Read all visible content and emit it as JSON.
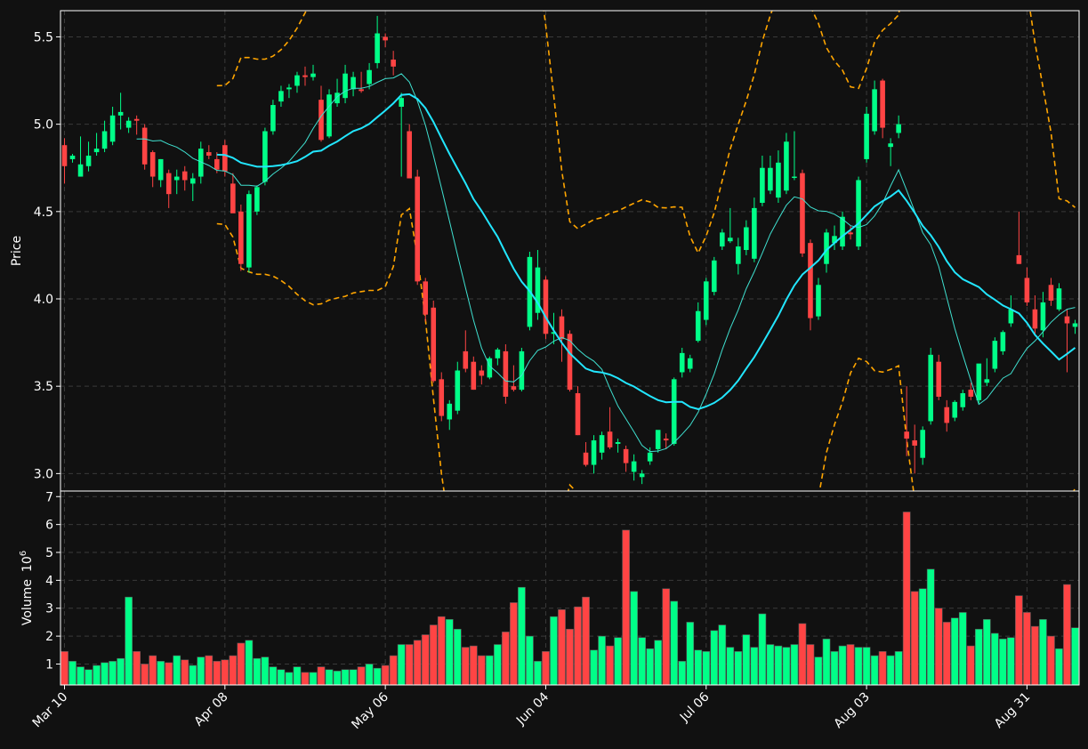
{
  "chart_data": {
    "type": "candlestick",
    "panels": [
      "price",
      "volume"
    ],
    "x_tick_labels": [
      "Mar 10",
      "Apr 08",
      "May 06",
      "Jun 04",
      "Jul 06",
      "Aug 03",
      "Aug 31"
    ],
    "x_tick_days": [
      0,
      20,
      40,
      60,
      80,
      100,
      120
    ],
    "x_range": [
      -0.5,
      126.5
    ],
    "price_axis": {
      "label": "Price",
      "ylim": [
        2.9,
        5.65
      ],
      "ticks": [
        3.0,
        3.5,
        4.0,
        4.5,
        5.0,
        5.5
      ]
    },
    "volume_axis": {
      "label": "Volume",
      "exponent_label": "10",
      "exponent": "6",
      "ylim": [
        0.25,
        7.2
      ],
      "ticks": [
        1,
        2,
        3,
        4,
        5,
        6,
        7
      ]
    },
    "grid": true,
    "colors": {
      "background": "#111111",
      "up": "#00ff88",
      "down": "#ff4444",
      "grid": "#3a3a3a",
      "ma_fast": "#3fe0d0",
      "ma_slow": "#22e6ff",
      "bands": "#ffa500",
      "text": "#ffffff"
    },
    "series": [
      {
        "name": "",
        "kind": "candles",
        "rows": [
          [
            4.88,
            4.92,
            4.66,
            4.76,
            1.45
          ],
          [
            4.8,
            4.83,
            4.78,
            4.82,
            1.1
          ],
          [
            4.7,
            4.93,
            4.7,
            4.77,
            0.9
          ],
          [
            4.76,
            4.9,
            4.73,
            4.82,
            0.8
          ],
          [
            4.84,
            4.95,
            4.82,
            4.86,
            0.95
          ],
          [
            4.86,
            5.02,
            4.84,
            4.96,
            1.05
          ],
          [
            4.9,
            5.1,
            4.88,
            5.05,
            1.1
          ],
          [
            5.05,
            5.18,
            4.97,
            5.07,
            1.2
          ],
          [
            4.98,
            5.04,
            4.95,
            5.02,
            3.4
          ],
          [
            5.03,
            5.05,
            4.94,
            5.02,
            1.45
          ],
          [
            4.98,
            5.0,
            4.74,
            4.77,
            1.0
          ],
          [
            4.84,
            4.85,
            4.64,
            4.7,
            1.3
          ],
          [
            4.68,
            4.8,
            4.64,
            4.8,
            1.1
          ],
          [
            4.72,
            4.74,
            4.52,
            4.6,
            1.05
          ],
          [
            4.68,
            4.74,
            4.6,
            4.7,
            1.3
          ],
          [
            4.73,
            4.76,
            4.62,
            4.68,
            1.15
          ],
          [
            4.66,
            4.72,
            4.56,
            4.69,
            0.95
          ],
          [
            4.7,
            4.9,
            4.66,
            4.86,
            1.25
          ],
          [
            4.84,
            4.88,
            4.8,
            4.82,
            1.3
          ],
          [
            4.8,
            4.84,
            4.72,
            4.74,
            1.1
          ],
          [
            4.88,
            4.91,
            4.7,
            4.73,
            1.15
          ],
          [
            4.66,
            4.72,
            4.5,
            4.49,
            1.3
          ],
          [
            4.5,
            4.54,
            4.16,
            4.2,
            1.75
          ],
          [
            4.18,
            4.62,
            4.15,
            4.6,
            1.85
          ],
          [
            4.5,
            4.65,
            4.48,
            4.64,
            1.2
          ],
          [
            4.67,
            4.98,
            4.65,
            4.96,
            1.25
          ],
          [
            4.96,
            5.14,
            4.94,
            5.11,
            0.9
          ],
          [
            5.13,
            5.22,
            5.1,
            5.19,
            0.8
          ],
          [
            5.2,
            5.23,
            5.15,
            5.21,
            0.7
          ],
          [
            5.22,
            5.3,
            5.18,
            5.28,
            0.9
          ],
          [
            5.28,
            5.33,
            5.22,
            5.27,
            0.7
          ],
          [
            5.27,
            5.34,
            5.25,
            5.29,
            0.7
          ],
          [
            5.14,
            5.22,
            4.9,
            4.91,
            0.9
          ],
          [
            4.93,
            5.2,
            4.92,
            5.17,
            0.8
          ],
          [
            5.12,
            5.26,
            5.1,
            5.18,
            0.75
          ],
          [
            5.15,
            5.34,
            5.12,
            5.29,
            0.8
          ],
          [
            5.2,
            5.3,
            5.16,
            5.27,
            0.8
          ],
          [
            5.2,
            5.3,
            5.18,
            5.19,
            0.9
          ],
          [
            5.23,
            5.35,
            5.2,
            5.31,
            1.0
          ],
          [
            5.35,
            5.62,
            5.32,
            5.52,
            0.85
          ],
          [
            5.5,
            5.52,
            5.44,
            5.48,
            0.95
          ],
          [
            5.37,
            5.42,
            5.28,
            5.33,
            1.3
          ],
          [
            5.1,
            5.18,
            4.7,
            5.15,
            1.7
          ],
          [
            4.96,
            5.0,
            4.74,
            4.69,
            1.7
          ],
          [
            4.7,
            4.74,
            4.08,
            4.1,
            1.85
          ],
          [
            4.1,
            4.12,
            3.87,
            3.91,
            2.05
          ],
          [
            3.95,
            3.99,
            3.52,
            3.53,
            2.4
          ],
          [
            3.54,
            3.58,
            3.3,
            3.33,
            2.7
          ],
          [
            3.31,
            3.42,
            3.25,
            3.4,
            2.6
          ],
          [
            3.36,
            3.64,
            3.34,
            3.59,
            2.25
          ],
          [
            3.7,
            3.82,
            3.58,
            3.6,
            1.6
          ],
          [
            3.64,
            3.67,
            3.48,
            3.48,
            1.65
          ],
          [
            3.59,
            3.62,
            3.51,
            3.56,
            1.3
          ],
          [
            3.55,
            3.67,
            3.54,
            3.66,
            1.3
          ],
          [
            3.66,
            3.72,
            3.62,
            3.71,
            1.7
          ],
          [
            3.7,
            3.74,
            3.4,
            3.44,
            2.15
          ],
          [
            3.5,
            3.62,
            3.47,
            3.48,
            3.2
          ],
          [
            3.48,
            3.72,
            3.47,
            3.7,
            3.75
          ],
          [
            3.84,
            4.27,
            3.82,
            4.24,
            2.0
          ],
          [
            3.92,
            4.28,
            3.88,
            4.18,
            1.1
          ],
          [
            4.11,
            4.13,
            3.77,
            3.8,
            1.45
          ],
          [
            3.8,
            3.92,
            3.74,
            3.81,
            2.7
          ],
          [
            3.9,
            3.94,
            3.64,
            3.77,
            2.95
          ],
          [
            3.8,
            3.82,
            3.47,
            3.48,
            2.25
          ],
          [
            3.46,
            3.5,
            3.22,
            3.22,
            3.05
          ],
          [
            3.12,
            3.18,
            3.04,
            3.05,
            3.4
          ],
          [
            3.05,
            3.22,
            3.0,
            3.19,
            1.5
          ],
          [
            3.12,
            3.24,
            3.08,
            3.22,
            2.0
          ],
          [
            3.24,
            3.38,
            3.14,
            3.15,
            1.65
          ],
          [
            3.17,
            3.2,
            3.12,
            3.18,
            1.95
          ],
          [
            3.14,
            3.16,
            3.01,
            3.06,
            5.8
          ],
          [
            3.01,
            3.11,
            2.96,
            3.07,
            3.6
          ],
          [
            2.98,
            3.02,
            2.94,
            3.0,
            1.95
          ],
          [
            3.07,
            3.15,
            3.05,
            3.12,
            1.55
          ],
          [
            3.14,
            3.24,
            3.12,
            3.25,
            1.85
          ],
          [
            3.2,
            3.23,
            3.14,
            3.19,
            3.7
          ],
          [
            3.17,
            3.55,
            3.16,
            3.54,
            3.25
          ],
          [
            3.58,
            3.72,
            3.55,
            3.69,
            1.1
          ],
          [
            3.6,
            3.68,
            3.58,
            3.66,
            2.5
          ],
          [
            3.76,
            3.98,
            3.75,
            3.93,
            1.5
          ],
          [
            3.88,
            4.12,
            3.85,
            4.1,
            1.45
          ],
          [
            4.04,
            4.24,
            4.02,
            4.22,
            2.2
          ],
          [
            4.3,
            4.4,
            4.28,
            4.38,
            2.4
          ],
          [
            4.33,
            4.52,
            4.32,
            4.35,
            1.6
          ],
          [
            4.2,
            4.35,
            4.14,
            4.3,
            1.45
          ],
          [
            4.28,
            4.45,
            4.25,
            4.41,
            2.05
          ],
          [
            4.23,
            4.58,
            4.21,
            4.52,
            1.6
          ],
          [
            4.55,
            4.82,
            4.53,
            4.75,
            2.8
          ],
          [
            4.62,
            4.82,
            4.6,
            4.75,
            1.7
          ],
          [
            4.58,
            4.85,
            4.55,
            4.78,
            1.65
          ],
          [
            4.62,
            4.95,
            4.6,
            4.9,
            1.6
          ],
          [
            4.7,
            4.96,
            4.68,
            4.7,
            1.7
          ],
          [
            4.72,
            4.74,
            4.24,
            4.26,
            2.45
          ],
          [
            4.32,
            4.34,
            3.82,
            3.89,
            1.7
          ],
          [
            3.9,
            4.12,
            3.88,
            4.08,
            1.25
          ],
          [
            4.2,
            4.4,
            4.15,
            4.38,
            1.9
          ],
          [
            4.32,
            4.42,
            4.28,
            4.36,
            1.45
          ],
          [
            4.3,
            4.5,
            4.28,
            4.47,
            1.65
          ],
          [
            4.38,
            4.42,
            4.34,
            4.37,
            1.7
          ],
          [
            4.3,
            4.7,
            4.28,
            4.68,
            1.6
          ],
          [
            4.8,
            5.1,
            4.78,
            5.06,
            1.6
          ],
          [
            4.96,
            5.25,
            4.94,
            5.2,
            1.3
          ],
          [
            5.25,
            5.26,
            4.92,
            4.98,
            1.45
          ],
          [
            4.87,
            4.92,
            4.76,
            4.89,
            1.3
          ],
          [
            4.95,
            5.05,
            4.92,
            5.0,
            1.45
          ],
          [
            3.24,
            3.5,
            3.1,
            3.2,
            6.45
          ],
          [
            3.19,
            3.28,
            3.0,
            3.16,
            3.6
          ],
          [
            3.09,
            3.27,
            3.05,
            3.25,
            3.7
          ],
          [
            3.3,
            3.72,
            3.28,
            3.68,
            4.4
          ],
          [
            3.64,
            3.68,
            3.42,
            3.44,
            3.0
          ],
          [
            3.38,
            3.42,
            3.24,
            3.29,
            2.5
          ],
          [
            3.32,
            3.42,
            3.3,
            3.41,
            2.65
          ],
          [
            3.38,
            3.48,
            3.36,
            3.46,
            2.85
          ],
          [
            3.48,
            3.52,
            3.42,
            3.44,
            1.65
          ],
          [
            3.42,
            3.62,
            3.4,
            3.63,
            2.25
          ],
          [
            3.52,
            3.66,
            3.5,
            3.54,
            2.6
          ],
          [
            3.6,
            3.78,
            3.58,
            3.76,
            2.1
          ],
          [
            3.7,
            3.82,
            3.68,
            3.81,
            1.9
          ],
          [
            3.86,
            4.02,
            3.84,
            3.94,
            1.95
          ],
          [
            4.25,
            4.5,
            4.2,
            4.2,
            3.45
          ],
          [
            4.12,
            4.18,
            3.96,
            3.98,
            2.85
          ],
          [
            3.94,
            4.02,
            3.8,
            3.83,
            2.35
          ],
          [
            3.82,
            4.04,
            3.78,
            3.98,
            2.6
          ],
          [
            4.08,
            4.12,
            3.96,
            3.99,
            2.0
          ],
          [
            3.94,
            4.09,
            3.93,
            4.06,
            1.55
          ],
          [
            3.9,
            3.94,
            3.58,
            3.86,
            3.85
          ],
          [
            3.84,
            3.88,
            3.8,
            3.86,
            2.3
          ]
        ]
      },
      {
        "name": "",
        "kind": "moving-average-fast",
        "window": 10
      },
      {
        "name": "",
        "kind": "moving-average-slow",
        "window": 20
      },
      {
        "name": "",
        "kind": "bollinger-bands",
        "window": 20,
        "k": 3
      }
    ]
  }
}
